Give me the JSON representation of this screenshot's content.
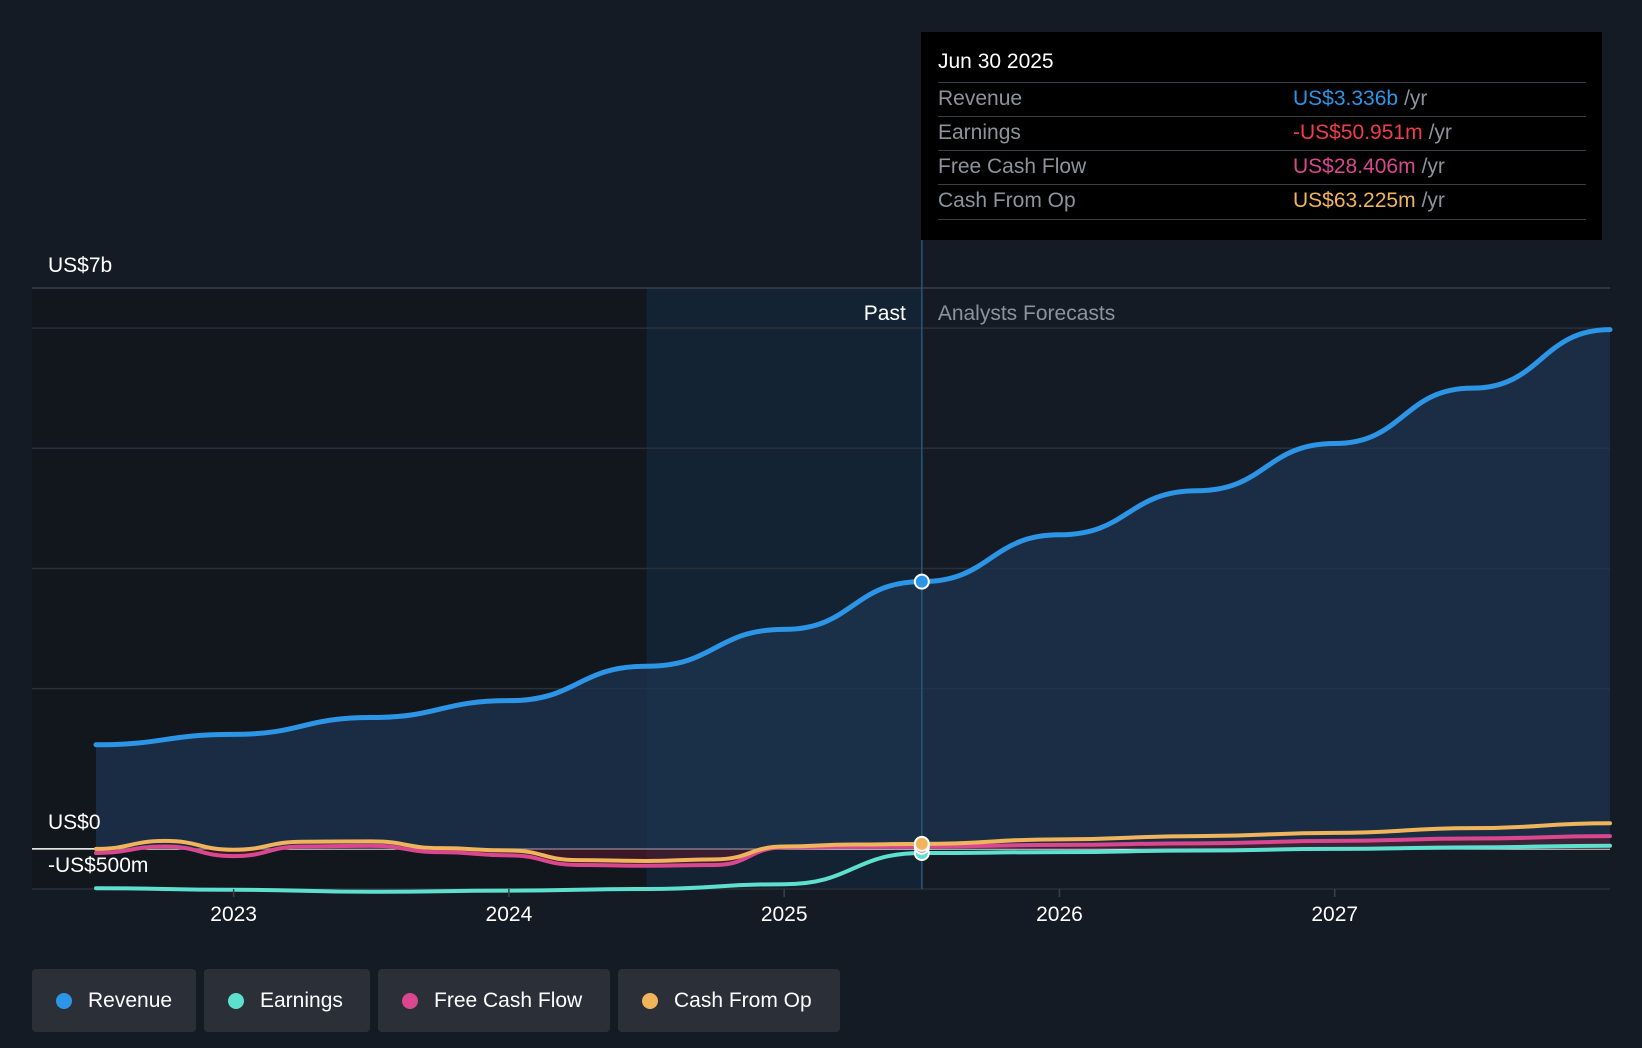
{
  "tooltip": {
    "date": "Jun 30 2025",
    "unit": "/yr",
    "rows": [
      {
        "label": "Revenue",
        "value": "US$3.336b",
        "color": "#2d95e6"
      },
      {
        "label": "Earnings",
        "value": "-US$50.951m",
        "color": "#ef3e4a"
      },
      {
        "label": "Free Cash Flow",
        "value": "US$28.406m",
        "color": "#d9488f"
      },
      {
        "label": "Cash From Op",
        "value": "US$63.225m",
        "color": "#f0b45c"
      }
    ]
  },
  "chart_data": {
    "type": "line",
    "y_axis_labels": {
      "top": "US$7b",
      "zero": "US$0",
      "bottom": "-US$500m"
    },
    "ylim": [
      -500,
      7000
    ],
    "xlim": [
      2022.5,
      2028.0
    ],
    "x_ticks": [
      "2023",
      "2024",
      "2025",
      "2026",
      "2027"
    ],
    "x_tick_values": [
      2023,
      2024,
      2025,
      2026,
      2027
    ],
    "past_label": "Past",
    "forecast_label": "Analysts Forecasts",
    "divider_x": 2025.5,
    "highlight_start_x": 2024.5,
    "unit": "US$m",
    "grid": true,
    "series": [
      {
        "name": "Revenue",
        "color": "#2d95e6",
        "x": [
          2022.5,
          2023.0,
          2023.5,
          2024.0,
          2024.5,
          2025.0,
          2025.5,
          2026.0,
          2026.5,
          2027.0,
          2027.5,
          2028.0
        ],
        "y": [
          1300,
          1430,
          1640,
          1850,
          2280,
          2740,
          3336,
          3920,
          4470,
          5060,
          5750,
          6480
        ]
      },
      {
        "name": "Earnings",
        "color": "#5ee0cf",
        "x": [
          2022.5,
          2023.0,
          2023.5,
          2024.0,
          2024.5,
          2025.0,
          2025.5,
          2026.0,
          2026.5,
          2027.0,
          2027.5,
          2028.0
        ],
        "y": [
          -490,
          -510,
          -535,
          -520,
          -500,
          -440,
          -51,
          -40,
          -20,
          0,
          20,
          40
        ]
      },
      {
        "name": "Free Cash Flow",
        "color": "#d9488f",
        "x": [
          2022.5,
          2022.75,
          2023.0,
          2023.25,
          2023.5,
          2023.75,
          2024.0,
          2024.25,
          2024.5,
          2024.75,
          2025.0,
          2025.25,
          2025.5,
          2026.0,
          2026.5,
          2027.0,
          2027.5,
          2028.0
        ],
        "y": [
          -50,
          30,
          -90,
          30,
          40,
          -40,
          -80,
          -200,
          -210,
          -200,
          20,
          25,
          28,
          50,
          70,
          100,
          130,
          160
        ]
      },
      {
        "name": "Cash From Op",
        "color": "#f0b45c",
        "x": [
          2022.5,
          2022.75,
          2023.0,
          2023.25,
          2023.5,
          2023.75,
          2024.0,
          2024.25,
          2024.5,
          2024.75,
          2025.0,
          2025.25,
          2025.5,
          2026.0,
          2026.5,
          2027.0,
          2027.5,
          2028.0
        ],
        "y": [
          0,
          100,
          -10,
          90,
          95,
          10,
          -20,
          -140,
          -150,
          -130,
          30,
          55,
          63,
          120,
          160,
          200,
          260,
          320
        ]
      }
    ]
  },
  "legend": [
    {
      "label": "Revenue",
      "color": "#2d95e6"
    },
    {
      "label": "Earnings",
      "color": "#5ee0cf"
    },
    {
      "label": "Free Cash Flow",
      "color": "#d9488f"
    },
    {
      "label": "Cash From Op",
      "color": "#f0b45c"
    }
  ]
}
